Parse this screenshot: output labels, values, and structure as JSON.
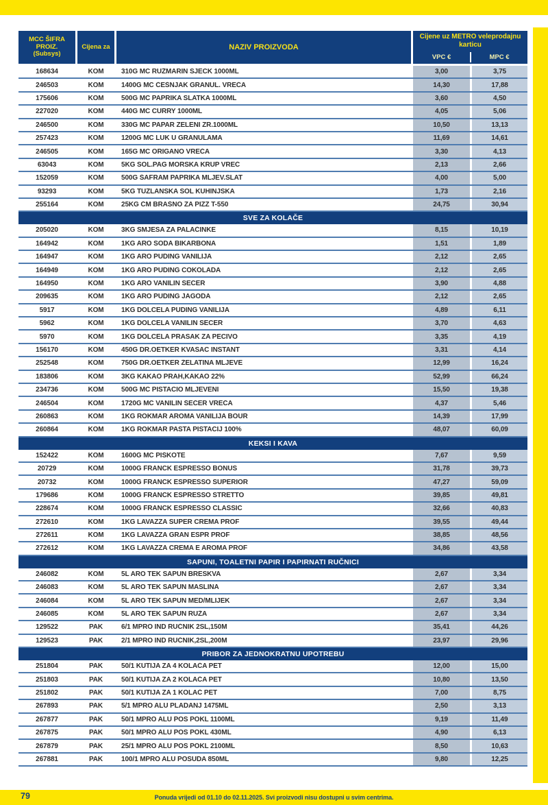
{
  "colors": {
    "metro_yellow": "#fde500",
    "header_blue": "#123f7d",
    "header_text_yellow": "#f7e017",
    "row_separator_blue": "#4f7cb0",
    "vpc_cell_bg": "#b6c2d0",
    "mpc_cell_bg": "#c1cedd"
  },
  "footer": {
    "page_number": "79",
    "note": "Ponuda vrijedi od 01.10 do 02.11.2025. Svi proizvodi nisu dostupni u svim centrima."
  },
  "table": {
    "header": {
      "code_line1": "MCC ŠIFRA PROIZ.",
      "code_line2": "(Subsys)",
      "unit": "Cijena za",
      "name": "NAZIV PROIZVODA",
      "price_group": "Cijene uz METRO veleprodajnu karticu",
      "vpc": "VPC €",
      "mpc": "MPC €"
    },
    "rows": [
      {
        "code": "168634",
        "unit": "KOM",
        "name": "310G MC RUŽMARIN SJECK 1000ML",
        "vpc": "3,00",
        "mpc": "3,75"
      },
      {
        "code": "246503",
        "unit": "KOM",
        "name": "1400G MC ČEŠNJAK GRANUL. VREĆA",
        "vpc": "14,30",
        "mpc": "17,88"
      },
      {
        "code": "175606",
        "unit": "KOM",
        "name": "500G MC PAPRIKA SLATKA 1000ML",
        "vpc": "3,60",
        "mpc": "4,50"
      },
      {
        "code": "227020",
        "unit": "KOM",
        "name": "440G MC CURRY 1000ML",
        "vpc": "4,05",
        "mpc": "5,06"
      },
      {
        "code": "246500",
        "unit": "KOM",
        "name": "330G MC PAPAR ZELENI ZR.1000ML",
        "vpc": "10,50",
        "mpc": "13,13"
      },
      {
        "code": "257423",
        "unit": "KOM",
        "name": "1200G MC LUK U GRANULAMA",
        "vpc": "11,69",
        "mpc": "14,61"
      },
      {
        "code": "246505",
        "unit": "KOM",
        "name": "165G MC ORIGANO VREĆA",
        "vpc": "3,30",
        "mpc": "4,13"
      },
      {
        "code": "63043",
        "unit": "KOM",
        "name": "5KG SOL.PAG MORSKA KRUP VREĆ",
        "vpc": "2,13",
        "mpc": "2,66"
      },
      {
        "code": "152059",
        "unit": "KOM",
        "name": "500G ŠAFRAM PAPRIKA MLJEV.SLAT",
        "vpc": "4,00",
        "mpc": "5,00"
      },
      {
        "code": "93293",
        "unit": "KOM",
        "name": "5KG TUZLANSKA SOL KUHINJSKA",
        "vpc": "1,73",
        "mpc": "2,16"
      },
      {
        "code": "255164",
        "unit": "KOM",
        "name": "25KG ČM BRAŠNO ZA PIZZ T-550",
        "vpc": "24,75",
        "mpc": "30,94"
      },
      {
        "section": "SVE ZA KOLAČE"
      },
      {
        "code": "205020",
        "unit": "KOM",
        "name": "3KG SMJESA ZA PALAČINKE",
        "vpc": "8,15",
        "mpc": "10,19"
      },
      {
        "code": "164942",
        "unit": "KOM",
        "name": "1KG ARO SODA BIKARBONA",
        "vpc": "1,51",
        "mpc": "1,89"
      },
      {
        "code": "164947",
        "unit": "KOM",
        "name": "1KG ARO PUDING VANILIJA",
        "vpc": "2,12",
        "mpc": "2,65"
      },
      {
        "code": "164949",
        "unit": "KOM",
        "name": "1KG ARO PUDING COKOLADA",
        "vpc": "2,12",
        "mpc": "2,65"
      },
      {
        "code": "164950",
        "unit": "KOM",
        "name": "1KG ARO VANILIN SECER",
        "vpc": "3,90",
        "mpc": "4,88"
      },
      {
        "code": "209635",
        "unit": "KOM",
        "name": "1KG ARO PUDING JAGODA",
        "vpc": "2,12",
        "mpc": "2,65"
      },
      {
        "code": "5917",
        "unit": "KOM",
        "name": "1KG DOLCELA PUDING VANILIJA",
        "vpc": "4,89",
        "mpc": "6,11"
      },
      {
        "code": "5962",
        "unit": "KOM",
        "name": "1KG DOLCELA VANILIN SECER",
        "vpc": "3,70",
        "mpc": "4,63"
      },
      {
        "code": "5970",
        "unit": "KOM",
        "name": "1KG DOLCELA PRASAK ZA PECIVO",
        "vpc": "3,35",
        "mpc": "4,19"
      },
      {
        "code": "156170",
        "unit": "KOM",
        "name": "450G DR.OETKER KVASAC INSTANT",
        "vpc": "3,31",
        "mpc": "4,14"
      },
      {
        "code": "252548",
        "unit": "KOM",
        "name": "750G DR.OETKER ŽELATINA MLJEVE",
        "vpc": "12,99",
        "mpc": "16,24"
      },
      {
        "code": "183806",
        "unit": "KOM",
        "name": "3KG KAKAO PRAH,KAKAO 22%",
        "vpc": "52,99",
        "mpc": "66,24"
      },
      {
        "code": "234736",
        "unit": "KOM",
        "name": "500G MC PISTACIO MLJEVENI",
        "vpc": "15,50",
        "mpc": "19,38"
      },
      {
        "code": "246504",
        "unit": "KOM",
        "name": "1720G MC VANILIN ŠEĆER VREĆA",
        "vpc": "4,37",
        "mpc": "5,46"
      },
      {
        "code": "260863",
        "unit": "KOM",
        "name": "1KG ROKMAR AROMA VANILIJA BOUR",
        "vpc": "14,39",
        "mpc": "17,99"
      },
      {
        "code": "260864",
        "unit": "KOM",
        "name": "1KG ROKMAR PASTA PISTACIJ 100%",
        "vpc": "48,07",
        "mpc": "60,09"
      },
      {
        "section": "KEKSI I KAVA"
      },
      {
        "code": "152422",
        "unit": "KOM",
        "name": "1600G MC PIŠKOTE",
        "vpc": "7,67",
        "mpc": "9,59"
      },
      {
        "code": "20729",
        "unit": "KOM",
        "name": "1000G FRANCK ESPRESSO BONUS",
        "vpc": "31,78",
        "mpc": "39,73"
      },
      {
        "code": "20732",
        "unit": "KOM",
        "name": "1000G FRANCK ESPRESSO SUPERIOR",
        "vpc": "47,27",
        "mpc": "59,09"
      },
      {
        "code": "179686",
        "unit": "KOM",
        "name": "1000G FRANCK ESPRESSO STRETTO",
        "vpc": "39,85",
        "mpc": "49,81"
      },
      {
        "code": "228674",
        "unit": "KOM",
        "name": "1000G FRANCK ESPRESSO CLASSIC",
        "vpc": "32,66",
        "mpc": "40,83"
      },
      {
        "code": "272610",
        "unit": "KOM",
        "name": "1KG LAVAZZA SUPER CREMA PROF",
        "vpc": "39,55",
        "mpc": "49,44"
      },
      {
        "code": "272611",
        "unit": "KOM",
        "name": "1KG LAVAZZA GRAN ESPR PROF",
        "vpc": "38,85",
        "mpc": "48,56"
      },
      {
        "code": "272612",
        "unit": "KOM",
        "name": "1KG LAVAZZA CREMA E AROMA PROF",
        "vpc": "34,86",
        "mpc": "43,58"
      },
      {
        "section": "SAPUNI, TOALETNI PAPIR I PAPIRNATI RUČNICI"
      },
      {
        "code": "246082",
        "unit": "KOM",
        "name": "5L ARO TEK SAPUN BRESKVA",
        "vpc": "2,67",
        "mpc": "3,34"
      },
      {
        "code": "246083",
        "unit": "KOM",
        "name": "5L ARO TEK SAPUN MASLINA",
        "vpc": "2,67",
        "mpc": "3,34"
      },
      {
        "code": "246084",
        "unit": "KOM",
        "name": "5L ARO TEK SAPUN MED/MLIJEK",
        "vpc": "2,67",
        "mpc": "3,34"
      },
      {
        "code": "246085",
        "unit": "KOM",
        "name": "5L ARO TEK SAPUN RUŽA",
        "vpc": "2,67",
        "mpc": "3,34"
      },
      {
        "code": "129522",
        "unit": "PAK",
        "name": "6/1 MPRO IND RUČNIK 2SL,150M",
        "vpc": "35,41",
        "mpc": "44,26"
      },
      {
        "code": "129523",
        "unit": "PAK",
        "name": "2/1 MPRO IND RUČNIK,2SL,200M",
        "vpc": "23,97",
        "mpc": "29,96"
      },
      {
        "section": "PRIBOR ZA JEDNOKRATNU UPOTREBU"
      },
      {
        "code": "251804",
        "unit": "PAK",
        "name": "50/1 KUTIJA ZA 4 KOLAČA PET",
        "vpc": "12,00",
        "mpc": "15,00"
      },
      {
        "code": "251803",
        "unit": "PAK",
        "name": "50/1 KUTIJA ZA 2 KOLAČA PET",
        "vpc": "10,80",
        "mpc": "13,50"
      },
      {
        "code": "251802",
        "unit": "PAK",
        "name": "50/1 KUTIJA ZA 1 KOLAČ PET",
        "vpc": "7,00",
        "mpc": "8,75"
      },
      {
        "code": "267893",
        "unit": "PAK",
        "name": "5/1 MPRO ALU PLADANJ 1475ML",
        "vpc": "2,50",
        "mpc": "3,13"
      },
      {
        "code": "267877",
        "unit": "PAK",
        "name": "50/1 MPRO ALU POS POKL 1100ML",
        "vpc": "9,19",
        "mpc": "11,49"
      },
      {
        "code": "267875",
        "unit": "PAK",
        "name": "50/1 MPRO ALU POS POKL 430ML",
        "vpc": "4,90",
        "mpc": "6,13"
      },
      {
        "code": "267879",
        "unit": "PAK",
        "name": "25/1 MPRO ALU POS POKL 2100ML",
        "vpc": "8,50",
        "mpc": "10,63"
      },
      {
        "code": "267881",
        "unit": "PAK",
        "name": "100/1 MPRO ALU POSUDA 850ML",
        "vpc": "9,80",
        "mpc": "12,25"
      }
    ]
  }
}
